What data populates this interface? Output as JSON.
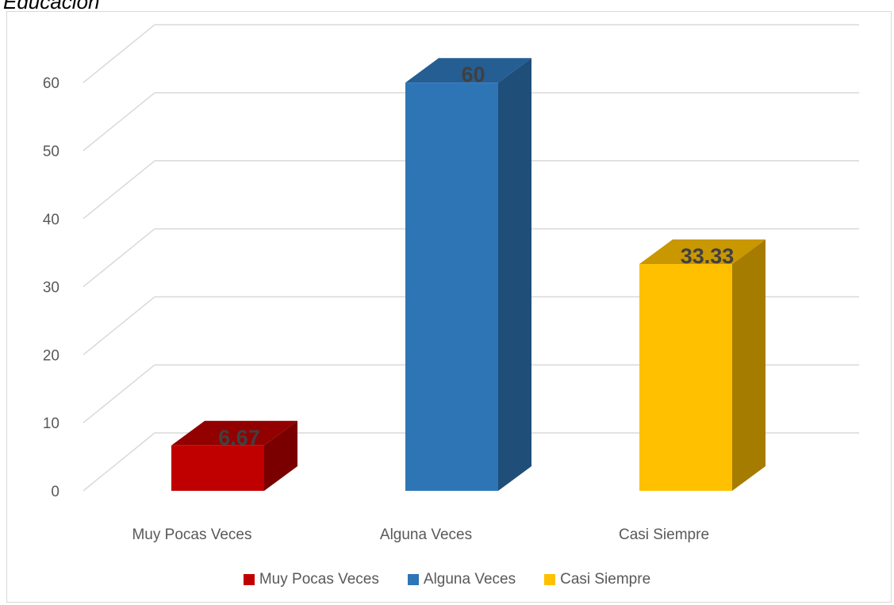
{
  "heading": "Educación",
  "chart_data": {
    "type": "bar",
    "categories": [
      "Muy Pocas Veces",
      "Alguna Veces",
      "Casi Siempre"
    ],
    "values": [
      6.67,
      60,
      33.33
    ],
    "data_labels": [
      "6.67",
      "60",
      "33.33"
    ],
    "ylim": [
      0,
      60
    ],
    "yticks": [
      0,
      10,
      20,
      30,
      40,
      50,
      60
    ],
    "grid": true,
    "style": "3d-column",
    "legend_position": "bottom",
    "colors": {
      "Muy Pocas Veces": {
        "front": "#c00000",
        "side": "#7a0000",
        "top": "#930000"
      },
      "Alguna Veces": {
        "front": "#2e75b6",
        "side": "#1f4e79",
        "top": "#245e93"
      },
      "Casi Siempre": {
        "front": "#ffc000",
        "side": "#a67c00",
        "top": "#c99700"
      }
    },
    "legend": [
      "Muy Pocas Veces",
      "Alguna Veces",
      "Casi Siempre"
    ]
  }
}
